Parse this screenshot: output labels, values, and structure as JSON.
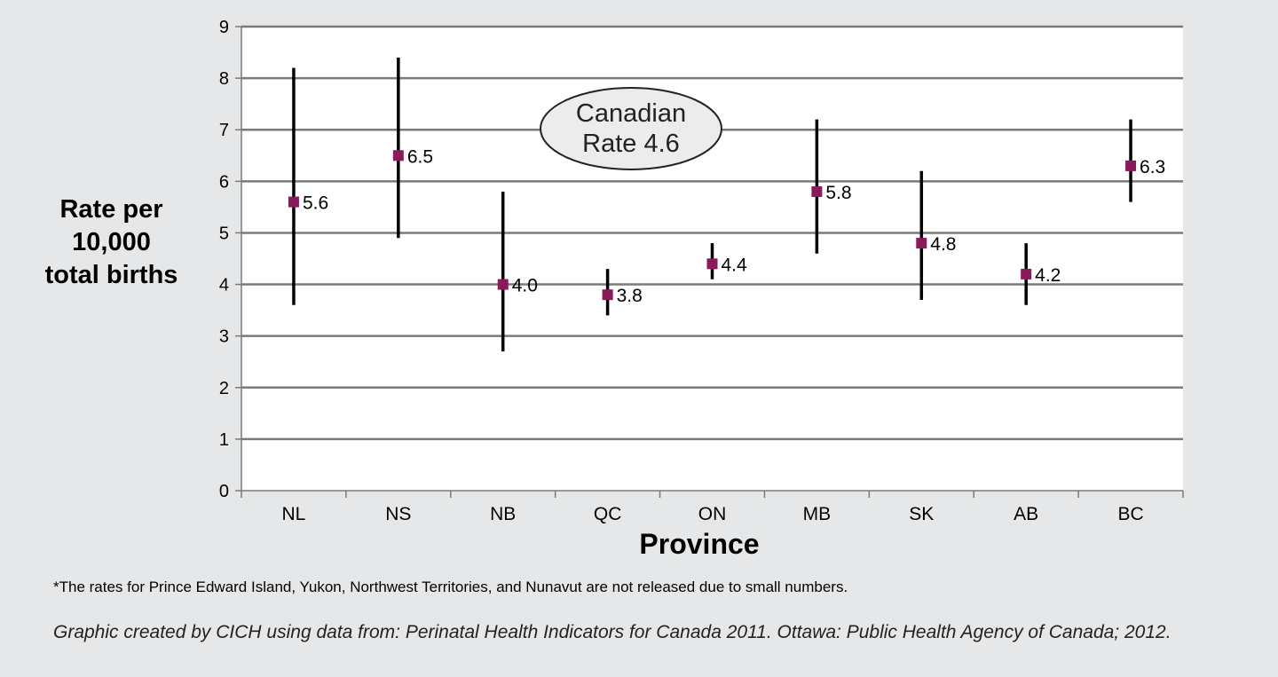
{
  "chart_data": {
    "type": "scatter",
    "subtype": "point-with-interval",
    "categories": [
      "NL",
      "NS",
      "NB",
      "QC",
      "ON",
      "MB",
      "SK",
      "AB",
      "BC"
    ],
    "series": [
      {
        "values": [
          5.6,
          6.5,
          4.0,
          3.8,
          4.4,
          5.8,
          4.8,
          4.2,
          6.3
        ],
        "lower": [
          3.6,
          4.9,
          2.7,
          3.4,
          4.1,
          4.6,
          3.7,
          3.6,
          5.6
        ],
        "upper": [
          8.2,
          8.4,
          5.8,
          4.3,
          4.8,
          7.2,
          6.2,
          4.8,
          7.2
        ],
        "labels": [
          "5.6",
          "6.5",
          "4.0",
          "3.8",
          "4.4",
          "5.8",
          "4.8",
          "4.2",
          "6.3"
        ]
      }
    ],
    "ylabel_lines": [
      "Rate per",
      "10,000",
      "total births"
    ],
    "xlabel": "Province",
    "ylim": [
      0,
      9
    ],
    "yticks": [
      "0",
      "1",
      "2",
      "3",
      "4",
      "5",
      "6",
      "7",
      "8",
      "9"
    ],
    "grid": true,
    "annotation": {
      "lines": [
        "Canadian",
        "Rate 4.6"
      ]
    },
    "colors": {
      "marker": "#8b1a5a",
      "interval": "#000000",
      "grid": "#7a7a7a",
      "plot_bg": "#ffffff",
      "page_bg": "#e6e7e8"
    }
  },
  "footnote": "*The rates for Prince Edward Island, Yukon, Northwest Territories, and Nunavut are not released due to small numbers.",
  "source": "Graphic created by CICH using data from: Perinatal Health Indicators for Canada 2011. Ottawa: Public Health Agency of Canada; 2012."
}
